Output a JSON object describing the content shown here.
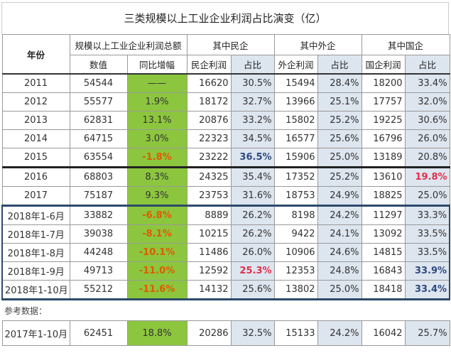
{
  "title": "三类规模以上工业企业利润占比演变（亿）",
  "headers": {
    "year": "年份",
    "total": "规模以上工业企业利润总额",
    "private": "其中民企",
    "foreign": "其中外企",
    "state": "其中国企",
    "value": "数值",
    "growth": "同比增幅",
    "private_profit": "民企利润",
    "share": "占比",
    "foreign_profit": "外企利润",
    "state_profit": "国企利润"
  },
  "rows": [
    [
      "2011",
      "54544",
      "——",
      "16620",
      "30.5%",
      "15494",
      "28.4%",
      "18200",
      "33.4%"
    ],
    [
      "2012",
      "55577",
      "1.9%",
      "18172",
      "32.7%",
      "13966",
      "25.1%",
      "17757",
      "32.0%"
    ],
    [
      "2013",
      "62831",
      "13.1%",
      "20876",
      "33.2%",
      "15802",
      "25.2%",
      "19225",
      "30.6%"
    ],
    [
      "2014",
      "64715",
      "3.0%",
      "22323",
      "34.5%",
      "16577",
      "25.6%",
      "16796",
      "26.0%"
    ],
    [
      "2015",
      "63554",
      "-1.8%",
      "23222",
      "36.5%",
      "15906",
      "25.0%",
      "13189",
      "20.8%"
    ],
    [
      "2016",
      "68803",
      "8.3%",
      "24325",
      "35.4%",
      "17352",
      "25.2%",
      "13610",
      "19.8%"
    ],
    [
      "2017",
      "75187",
      "9.3%",
      "23753",
      "31.6%",
      "18753",
      "24.9%",
      "18825",
      "25.0%"
    ],
    [
      "2018年1-6月",
      "33882",
      "-6.8%",
      "8889",
      "26.2%",
      "8198",
      "24.2%",
      "11297",
      "33.3%"
    ],
    [
      "2018年1-7月",
      "39038",
      "-8.1%",
      "10215",
      "26.2%",
      "9422",
      "24.1%",
      "13092",
      "33.5%"
    ],
    [
      "2018年1-8月",
      "44248",
      "-10.1%",
      "11486",
      "26.0%",
      "10906",
      "24.6%",
      "14815",
      "33.5%"
    ],
    [
      "2018年1-9月",
      "49713",
      "-11.0%",
      "12592",
      "25.3%",
      "12353",
      "24.8%",
      "16843",
      "33.9%"
    ],
    [
      "2018年1-10月",
      "55212",
      "-11.6%",
      "14132",
      "25.6%",
      "13802",
      "25.0%",
      "18418",
      "33.4%"
    ]
  ],
  "reference_label": "参考数据：",
  "reference_row": [
    "2017年1-10月",
    "62451",
    "18.8%",
    "20286",
    "32.5%",
    "15133",
    "24.2%",
    "16042",
    "25.7%"
  ],
  "highlight_colors": {
    "growth_bg": "#8cc63e",
    "share_bg": "#dde5ef",
    "negative": "#e05a00",
    "blue_bold": "#2f4a80",
    "red_bold": "#e0304a"
  }
}
